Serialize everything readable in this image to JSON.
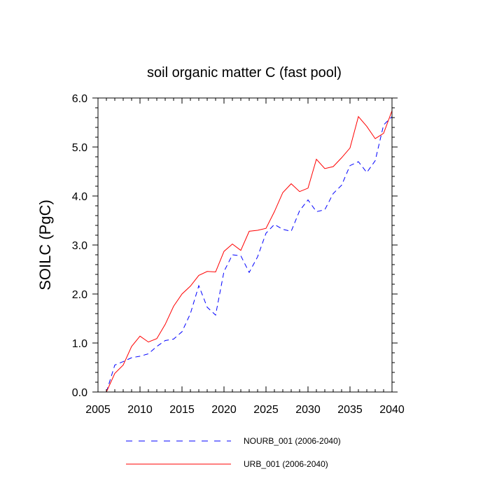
{
  "chart_data": {
    "type": "line",
    "title": "soil organic matter C (fast pool)",
    "xlabel": "",
    "ylabel": "SOILC  (PgC)",
    "xlim": [
      2005,
      2040
    ],
    "ylim": [
      0.0,
      6.0
    ],
    "x_ticks": [
      2005,
      2010,
      2015,
      2020,
      2025,
      2030,
      2035,
      2040
    ],
    "x_tick_labels": [
      "2005",
      "2010",
      "2015",
      "2020",
      "2025",
      "2030",
      "2035",
      "2040"
    ],
    "y_ticks": [
      0,
      1,
      2,
      3,
      4,
      5,
      6
    ],
    "y_tick_labels": [
      "0.0",
      "1.0",
      "2.0",
      "3.0",
      "4.0",
      "5.0",
      "6.0"
    ],
    "x": [
      2006,
      2007,
      2008,
      2009,
      2010,
      2011,
      2012,
      2013,
      2014,
      2015,
      2016,
      2017,
      2018,
      2019,
      2020,
      2021,
      2022,
      2023,
      2024,
      2025,
      2026,
      2027,
      2028,
      2029,
      2030,
      2031,
      2032,
      2033,
      2034,
      2035,
      2036,
      2037,
      2038,
      2039,
      2040
    ],
    "series": [
      {
        "name": "NOURB_001 (2006-2040)",
        "color": "#0000ff",
        "dash": "dashed",
        "values": [
          0.0,
          0.55,
          0.62,
          0.7,
          0.73,
          0.78,
          0.93,
          1.05,
          1.08,
          1.23,
          1.6,
          2.17,
          1.73,
          1.57,
          2.46,
          2.8,
          2.78,
          2.44,
          2.76,
          3.24,
          3.42,
          3.32,
          3.28,
          3.7,
          3.92,
          3.68,
          3.72,
          4.05,
          4.22,
          4.62,
          4.7,
          4.48,
          4.72,
          5.45,
          5.62
        ]
      },
      {
        "name": "URB_001 (2006-2040)",
        "color": "#ff0000",
        "dash": "solid",
        "values": [
          0.0,
          0.38,
          0.55,
          0.93,
          1.14,
          1.02,
          1.09,
          1.38,
          1.75,
          2.0,
          2.16,
          2.38,
          2.46,
          2.45,
          2.87,
          3.02,
          2.89,
          3.28,
          3.3,
          3.34,
          3.68,
          4.07,
          4.25,
          4.09,
          4.16,
          4.75,
          4.56,
          4.6,
          4.78,
          4.98,
          5.62,
          5.42,
          5.17,
          5.28,
          5.74
        ]
      }
    ],
    "legend": {
      "placement": "bottom",
      "entries": [
        "NOURB_001 (2006-2040)",
        "URB_001 (2006-2040)"
      ]
    }
  }
}
